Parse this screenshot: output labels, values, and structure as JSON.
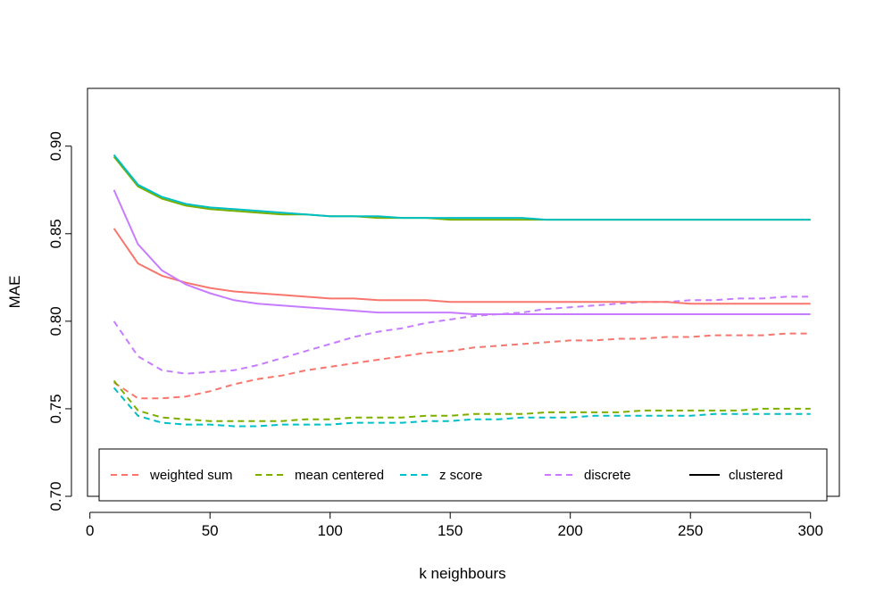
{
  "chart_data": {
    "type": "line",
    "xlabel": "k neighbours",
    "ylabel": "MAE",
    "xlim": [
      -1,
      312
    ],
    "ylim": [
      0.7,
      0.933
    ],
    "x_ticks": [
      0,
      50,
      100,
      150,
      200,
      250,
      300
    ],
    "y_ticks": [
      0.7,
      0.75,
      0.8,
      0.85,
      0.9
    ],
    "x_tick_labels": [
      "0",
      "50",
      "100",
      "150",
      "200",
      "250",
      "300"
    ],
    "y_tick_labels": [
      "0.70",
      "0.75",
      "0.80",
      "0.85",
      "0.90"
    ],
    "grid": false,
    "legend": {
      "position": "bottom",
      "entries": [
        {
          "label": "weighted sum",
          "color": "#F8766D",
          "dash": "dashed"
        },
        {
          "label": "mean centered",
          "color": "#7CAE00",
          "dash": "dashed"
        },
        {
          "label": "z score",
          "color": "#00BFC4",
          "dash": "dashed"
        },
        {
          "label": "discrete",
          "color": "#C77CFF",
          "dash": "dashed"
        },
        {
          "label": "clustered",
          "color": "#000000",
          "dash": "solid"
        }
      ]
    },
    "x": [
      10,
      20,
      30,
      40,
      50,
      60,
      70,
      80,
      90,
      100,
      110,
      120,
      130,
      140,
      150,
      160,
      170,
      180,
      190,
      200,
      210,
      220,
      230,
      240,
      250,
      260,
      270,
      280,
      290,
      300
    ],
    "series": [
      {
        "color": "#F8766D",
        "dash": "dashed",
        "values": [
          0.765,
          0.756,
          0.756,
          0.757,
          0.76,
          0.764,
          0.767,
          0.769,
          0.772,
          0.774,
          0.776,
          0.778,
          0.78,
          0.782,
          0.783,
          0.785,
          0.786,
          0.787,
          0.788,
          0.789,
          0.789,
          0.79,
          0.79,
          0.791,
          0.791,
          0.792,
          0.792,
          0.792,
          0.793,
          0.793
        ]
      },
      {
        "color": "#7CAE00",
        "dash": "dashed",
        "values": [
          0.766,
          0.749,
          0.745,
          0.744,
          0.743,
          0.743,
          0.743,
          0.743,
          0.744,
          0.744,
          0.745,
          0.745,
          0.745,
          0.746,
          0.746,
          0.747,
          0.747,
          0.747,
          0.748,
          0.748,
          0.748,
          0.748,
          0.749,
          0.749,
          0.749,
          0.749,
          0.749,
          0.75,
          0.75,
          0.75
        ]
      },
      {
        "color": "#00BFC4",
        "dash": "dashed",
        "values": [
          0.762,
          0.746,
          0.742,
          0.741,
          0.741,
          0.74,
          0.74,
          0.741,
          0.741,
          0.741,
          0.742,
          0.742,
          0.742,
          0.743,
          0.743,
          0.744,
          0.744,
          0.745,
          0.745,
          0.745,
          0.746,
          0.746,
          0.746,
          0.746,
          0.746,
          0.747,
          0.747,
          0.747,
          0.747,
          0.747
        ]
      },
      {
        "color": "#C77CFF",
        "dash": "dashed",
        "values": [
          0.8,
          0.78,
          0.772,
          0.77,
          0.771,
          0.772,
          0.775,
          0.779,
          0.783,
          0.787,
          0.791,
          0.794,
          0.796,
          0.799,
          0.801,
          0.803,
          0.804,
          0.805,
          0.807,
          0.808,
          0.809,
          0.81,
          0.811,
          0.811,
          0.812,
          0.812,
          0.813,
          0.813,
          0.814,
          0.814
        ]
      },
      {
        "color": "#F8766D",
        "dash": "solid",
        "values": [
          0.853,
          0.833,
          0.826,
          0.822,
          0.819,
          0.817,
          0.816,
          0.815,
          0.814,
          0.813,
          0.813,
          0.812,
          0.812,
          0.812,
          0.811,
          0.811,
          0.811,
          0.811,
          0.811,
          0.811,
          0.811,
          0.811,
          0.811,
          0.811,
          0.81,
          0.81,
          0.81,
          0.81,
          0.81,
          0.81
        ]
      },
      {
        "color": "#C77CFF",
        "dash": "solid",
        "values": [
          0.875,
          0.844,
          0.829,
          0.821,
          0.816,
          0.812,
          0.81,
          0.809,
          0.808,
          0.807,
          0.806,
          0.805,
          0.805,
          0.805,
          0.805,
          0.804,
          0.804,
          0.804,
          0.804,
          0.804,
          0.804,
          0.804,
          0.804,
          0.804,
          0.804,
          0.804,
          0.804,
          0.804,
          0.804,
          0.804
        ]
      },
      {
        "color": "#7CAE00",
        "dash": "solid",
        "values": [
          0.894,
          0.877,
          0.87,
          0.866,
          0.864,
          0.863,
          0.862,
          0.861,
          0.861,
          0.86,
          0.86,
          0.859,
          0.859,
          0.859,
          0.858,
          0.858,
          0.858,
          0.858,
          0.858,
          0.858,
          0.858,
          0.858,
          0.858,
          0.858,
          0.858,
          0.858,
          0.858,
          0.858,
          0.858,
          0.858
        ]
      },
      {
        "color": "#00BFC4",
        "dash": "solid",
        "values": [
          0.895,
          0.878,
          0.871,
          0.867,
          0.865,
          0.864,
          0.863,
          0.862,
          0.861,
          0.86,
          0.86,
          0.86,
          0.859,
          0.859,
          0.859,
          0.859,
          0.859,
          0.859,
          0.858,
          0.858,
          0.858,
          0.858,
          0.858,
          0.858,
          0.858,
          0.858,
          0.858,
          0.858,
          0.858,
          0.858
        ]
      }
    ]
  }
}
